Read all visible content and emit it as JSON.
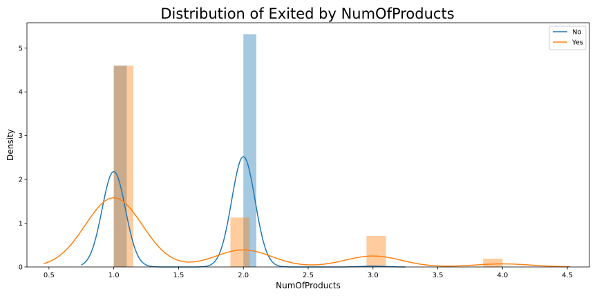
{
  "chart_data": {
    "type": "bar",
    "title": "Distribution of Exited by NumOfProducts",
    "xlabel": "NumOfProducts",
    "ylabel": "Density",
    "xlim": [
      0.33,
      4.67
    ],
    "ylim": [
      0,
      5.58
    ],
    "xticks": [
      "0.5",
      "1.0",
      "1.5",
      "2.0",
      "2.5",
      "3.0",
      "3.5",
      "4.0",
      "4.5"
    ],
    "yticks": [
      "0",
      "1",
      "2",
      "3",
      "4",
      "5"
    ],
    "grid": false,
    "legend_position": "top-right",
    "series": [
      {
        "name": "No",
        "color": "#1f77b4",
        "histogram": [
          {
            "x0": 1.0,
            "x1": 1.1,
            "density": 4.6
          },
          {
            "x0": 2.0,
            "x1": 2.1,
            "density": 5.32
          },
          {
            "x0": 2.9,
            "x1": 3.1,
            "density": 0.02
          }
        ],
        "kde_peaks": [
          {
            "x": 1.0,
            "density": 2.18
          },
          {
            "x": 2.0,
            "density": 2.52
          },
          {
            "x": 3.0,
            "density": 0.02
          }
        ]
      },
      {
        "name": "Yes",
        "color": "#ff7f0e",
        "histogram": [
          {
            "x0": 1.0,
            "x1": 1.15,
            "density": 4.6
          },
          {
            "x0": 1.9,
            "x1": 2.05,
            "density": 1.13
          },
          {
            "x0": 2.95,
            "x1": 3.1,
            "density": 0.71
          },
          {
            "x0": 3.85,
            "x1": 4.0,
            "density": 0.19
          }
        ],
        "kde_peaks": [
          {
            "x": 1.0,
            "density": 1.58
          },
          {
            "x": 2.0,
            "density": 0.39
          },
          {
            "x": 3.0,
            "density": 0.25
          },
          {
            "x": 4.0,
            "density": 0.07
          }
        ]
      }
    ]
  }
}
